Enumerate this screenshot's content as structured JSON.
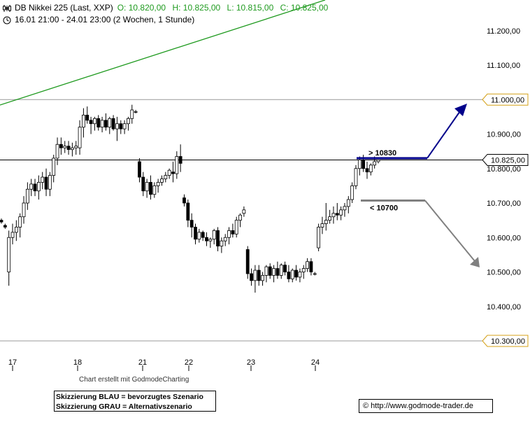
{
  "header": {
    "title": "DB Nikkei 225 (Last, XXP)",
    "open": "O: 10.820,00",
    "high": "H: 10.825,00",
    "low": "L: 10.815,00",
    "close": "C: 10.825,00",
    "period": "16.01 21:00 - 24.01 23:00 (2 Wochen, 1 Stunde)"
  },
  "chart_data": {
    "type": "candlestick",
    "x_ticks": [
      "17",
      "18",
      "21",
      "22",
      "23",
      "24"
    ],
    "y_ticks": [
      "11.200,00",
      "11.100,00",
      "10.900,00",
      "10.800,00",
      "10.700,00",
      "10.600,00",
      "10.500,00",
      "10.400,00"
    ],
    "ylim": [
      10290,
      11290
    ],
    "levels": [
      {
        "label": "11.000,00",
        "value": 11000
      },
      {
        "label": "10.825,00",
        "value": 10825
      },
      {
        "label": "10.300,00",
        "value": 10300
      }
    ],
    "scenarios": [
      {
        "label": "> 10830",
        "value": 10830,
        "color": "#00008b"
      },
      {
        "label": "< 10700",
        "value": 10707,
        "color": "#808080"
      }
    ],
    "candles": [
      [
        10650,
        10655,
        10640,
        10645
      ],
      [
        10635,
        10640,
        10625,
        10630
      ],
      [
        10500,
        10620,
        10460,
        10600
      ],
      [
        10600,
        10640,
        10580,
        10615
      ],
      [
        10615,
        10650,
        10590,
        10630
      ],
      [
        10630,
        10670,
        10600,
        10660
      ],
      [
        10660,
        10720,
        10640,
        10700
      ],
      [
        10700,
        10760,
        10680,
        10740
      ],
      [
        10740,
        10770,
        10720,
        10755
      ],
      [
        10755,
        10770,
        10720,
        10735
      ],
      [
        10735,
        10780,
        10710,
        10760
      ],
      [
        10760,
        10790,
        10740,
        10775
      ],
      [
        10775,
        10800,
        10720,
        10740
      ],
      [
        10740,
        10790,
        10720,
        10780
      ],
      [
        10780,
        10840,
        10760,
        10830
      ],
      [
        10830,
        10890,
        10810,
        10870
      ],
      [
        10870,
        10890,
        10840,
        10860
      ],
      [
        10860,
        10880,
        10845,
        10865
      ],
      [
        10865,
        10880,
        10840,
        10855
      ],
      [
        10855,
        10875,
        10835,
        10860
      ],
      [
        10860,
        10880,
        10840,
        10865
      ],
      [
        10860,
        10940,
        10840,
        10920
      ],
      [
        10920,
        10975,
        10890,
        10955
      ],
      [
        10955,
        10980,
        10930,
        10940
      ],
      [
        10940,
        10950,
        10900,
        10930
      ],
      [
        10930,
        10950,
        10910,
        10945
      ],
      [
        10945,
        10955,
        10910,
        10920
      ],
      [
        10920,
        10950,
        10905,
        10940
      ],
      [
        10940,
        10960,
        10910,
        10920
      ],
      [
        10920,
        10950,
        10900,
        10945
      ],
      [
        10945,
        10955,
        10910,
        10915
      ],
      [
        10915,
        10950,
        10880,
        10930
      ],
      [
        10930,
        10940,
        10900,
        10915
      ],
      [
        10915,
        10940,
        10900,
        10930
      ],
      [
        10930,
        10950,
        10910,
        10945
      ],
      [
        10945,
        10985,
        10930,
        10970
      ],
      [
        10965,
        10970,
        10960,
        10965
      ],
      [
        10820,
        10830,
        10760,
        10775
      ],
      [
        10775,
        10790,
        10720,
        10735
      ],
      [
        10735,
        10770,
        10715,
        10760
      ],
      [
        10760,
        10780,
        10710,
        10725
      ],
      [
        10725,
        10760,
        10715,
        10750
      ],
      [
        10750,
        10770,
        10730,
        10760
      ],
      [
        10760,
        10780,
        10750,
        10770
      ],
      [
        10770,
        10790,
        10760,
        10780
      ],
      [
        10780,
        10800,
        10770,
        10795
      ],
      [
        10790,
        10820,
        10760,
        10785
      ],
      [
        10785,
        10850,
        10770,
        10835
      ],
      [
        10835,
        10870,
        10790,
        10815
      ],
      [
        10715,
        10725,
        10690,
        10700
      ],
      [
        10700,
        10710,
        10630,
        10650
      ],
      [
        10650,
        10670,
        10600,
        10630
      ],
      [
        10630,
        10640,
        10580,
        10595
      ],
      [
        10595,
        10625,
        10585,
        10615
      ],
      [
        10615,
        10620,
        10590,
        10600
      ],
      [
        10600,
        10615,
        10575,
        10590
      ],
      [
        10590,
        10600,
        10570,
        10595
      ],
      [
        10595,
        10625,
        10580,
        10620
      ],
      [
        10620,
        10630,
        10560,
        10575
      ],
      [
        10575,
        10600,
        10555,
        10590
      ],
      [
        10590,
        10610,
        10575,
        10600
      ],
      [
        10600,
        10630,
        10580,
        10620
      ],
      [
        10620,
        10640,
        10600,
        10610
      ],
      [
        10610,
        10660,
        10600,
        10650
      ],
      [
        10650,
        10670,
        10630,
        10665
      ],
      [
        10670,
        10690,
        10660,
        10680
      ],
      [
        10565,
        10575,
        10480,
        10495
      ],
      [
        10495,
        10510,
        10460,
        10475
      ],
      [
        10475,
        10520,
        10440,
        10505
      ],
      [
        10505,
        10520,
        10460,
        10475
      ],
      [
        10475,
        10500,
        10460,
        10490
      ],
      [
        10490,
        10520,
        10470,
        10515
      ],
      [
        10515,
        10525,
        10480,
        10490
      ],
      [
        10490,
        10520,
        10470,
        10510
      ],
      [
        10510,
        10530,
        10480,
        10490
      ],
      [
        10490,
        10525,
        10480,
        10520
      ],
      [
        10520,
        10530,
        10490,
        10500
      ],
      [
        10500,
        10520,
        10470,
        10480
      ],
      [
        10480,
        10510,
        10470,
        10505
      ],
      [
        10505,
        10520,
        10475,
        10485
      ],
      [
        10485,
        10510,
        10470,
        10500
      ],
      [
        10500,
        10520,
        10480,
        10510
      ],
      [
        10510,
        10540,
        10500,
        10530
      ],
      [
        10530,
        10540,
        10490,
        10500
      ],
      [
        10495,
        10500,
        10490,
        10495
      ],
      [
        10570,
        10640,
        10560,
        10630
      ],
      [
        10630,
        10660,
        10610,
        10640
      ],
      [
        10640,
        10700,
        10620,
        10650
      ],
      [
        10650,
        10680,
        10640,
        10660
      ],
      [
        10660,
        10690,
        10640,
        10670
      ],
      [
        10670,
        10700,
        10650,
        10665
      ],
      [
        10665,
        10690,
        10650,
        10680
      ],
      [
        10680,
        10700,
        10660,
        10690
      ],
      [
        10690,
        10720,
        10670,
        10710
      ],
      [
        10710,
        10760,
        10700,
        10750
      ],
      [
        10750,
        10810,
        10740,
        10800
      ],
      [
        10800,
        10835,
        10780,
        10825
      ],
      [
        10825,
        10840,
        10790,
        10800
      ],
      [
        10800,
        10820,
        10770,
        10790
      ],
      [
        10790,
        10815,
        10780,
        10810
      ],
      [
        10810,
        10835,
        10800,
        10820
      ],
      [
        10820,
        10825,
        10815,
        10825
      ]
    ]
  },
  "credit": "Chart erstellt mit GodmodeCharting",
  "notes": {
    "line1": "Skizzierung BLAU = bevorzugtes Szenario",
    "line2": "Skizzierung GRAU = Alternativszenario"
  },
  "url": "© http://www.godmode-trader.de",
  "colors": {
    "trendline": "#1f9a1f",
    "blue": "#00008b",
    "grey": "#808080",
    "level_marker": "#d4a017"
  }
}
